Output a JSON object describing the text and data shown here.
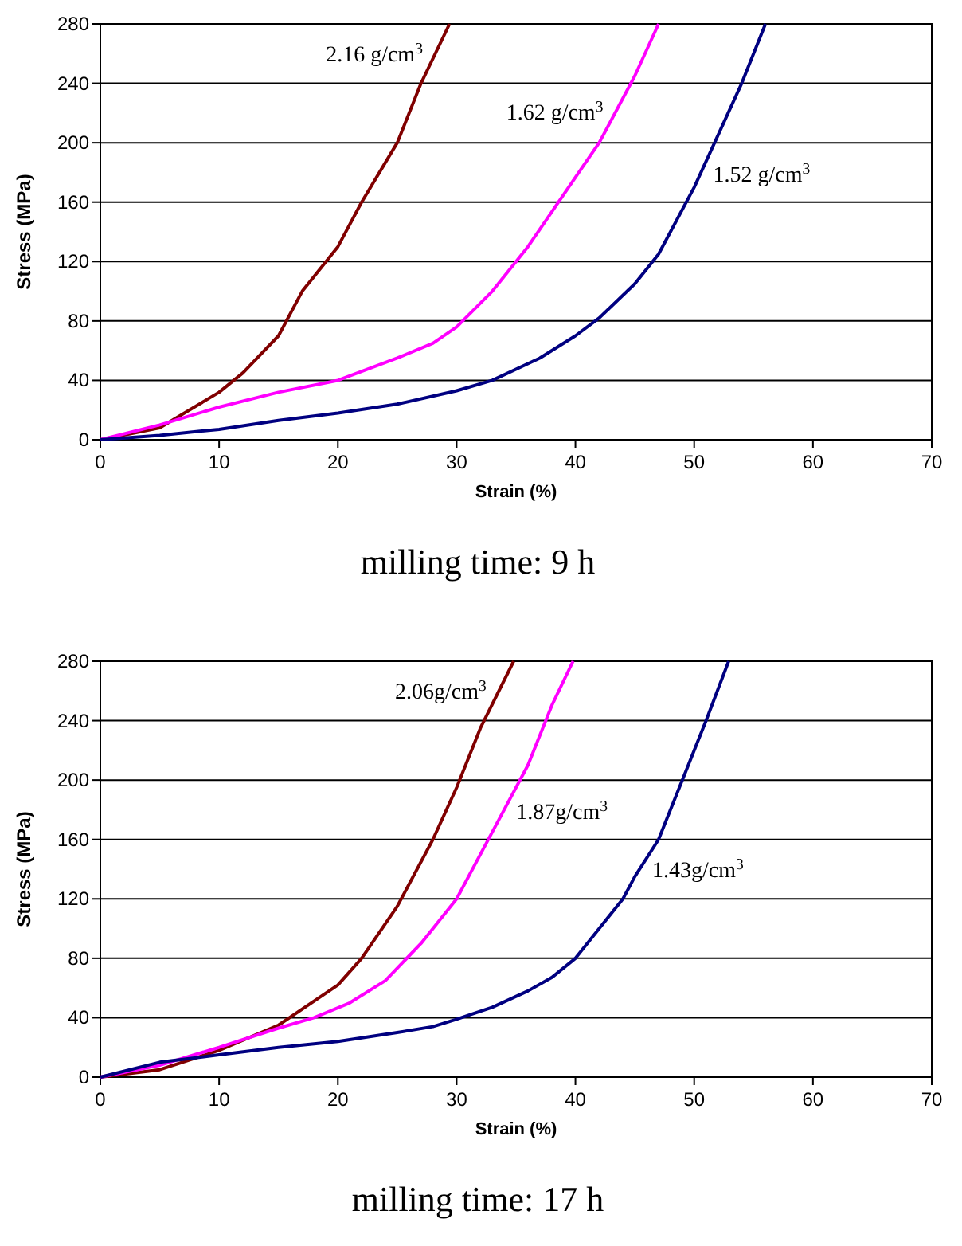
{
  "chart_data": [
    {
      "type": "line",
      "title": "milling time: 9 h",
      "xlabel": "Strain (%)",
      "ylabel": "Stress (MPa)",
      "xlim": [
        0,
        70
      ],
      "xticks": [
        0,
        10,
        20,
        30,
        40,
        50,
        60,
        70
      ],
      "ylim": [
        0,
        280
      ],
      "yticks": [
        0,
        40,
        80,
        120,
        160,
        200,
        240,
        280
      ],
      "grid": "y",
      "marker": "none",
      "line_style": "solid",
      "series": [
        {
          "name": "2.16 g/cm$^{3}$",
          "color": "#800000",
          "x": [
            0,
            5,
            10,
            12,
            15,
            17,
            20,
            22,
            25,
            27,
            29.4
          ],
          "values": [
            0,
            8,
            32,
            45,
            70,
            100,
            130,
            160,
            200,
            240,
            280
          ]
        },
        {
          "name": "1.62 g/cm$^{3}$",
          "color": "#ff00ff",
          "x": [
            0,
            5,
            10,
            15,
            20,
            25,
            28,
            30,
            33,
            36,
            39,
            42,
            45,
            47
          ],
          "values": [
            0,
            10,
            22,
            32,
            40,
            55,
            65,
            76,
            100,
            130,
            165,
            200,
            245,
            280
          ]
        },
        {
          "name": "1.52 g/cm$^{3}$",
          "color": "#000080",
          "x": [
            0,
            5,
            10,
            15,
            20,
            25,
            30,
            33,
            37,
            40,
            42,
            45,
            47,
            50,
            52,
            54,
            56
          ],
          "values": [
            0,
            3,
            7,
            13,
            18,
            24,
            33,
            40,
            55,
            70,
            82,
            105,
            125,
            170,
            205,
            240,
            280
          ]
        }
      ]
    },
    {
      "type": "line",
      "title": "milling time: 17 h",
      "xlabel": "Strain (%)",
      "ylabel": "Stress (MPa)",
      "xlim": [
        0,
        70
      ],
      "xticks": [
        0,
        10,
        20,
        30,
        40,
        50,
        60,
        70
      ],
      "ylim": [
        0,
        280
      ],
      "yticks": [
        0,
        40,
        80,
        120,
        160,
        200,
        240,
        280
      ],
      "grid": "y",
      "marker": "none",
      "line_style": "solid",
      "series": [
        {
          "name": "2.06g/cm$^{3}$",
          "color": "#800000",
          "x": [
            0,
            5,
            10,
            15,
            20,
            22,
            25,
            28,
            30,
            32,
            34.8
          ],
          "values": [
            0,
            5,
            18,
            35,
            62,
            80,
            115,
            160,
            195,
            235,
            280
          ]
        },
        {
          "name": "1.87g/cm$^{3}$",
          "color": "#ff00ff",
          "x": [
            0,
            5,
            10,
            15,
            18,
            21,
            24,
            27,
            30,
            33,
            36,
            38,
            39.8
          ],
          "values": [
            0,
            8,
            20,
            33,
            40,
            50,
            65,
            90,
            120,
            165,
            210,
            250,
            280
          ]
        },
        {
          "name": "1.43g/cm$^{3}$",
          "color": "#000080",
          "x": [
            0,
            5,
            10,
            15,
            20,
            25,
            28,
            30,
            33,
            36,
            38,
            40,
            42,
            44,
            45,
            47,
            49,
            51,
            52.9
          ],
          "values": [
            0,
            10,
            15,
            20,
            24,
            30,
            34,
            39,
            47,
            58,
            67,
            80,
            100,
            120,
            135,
            160,
            200,
            240,
            280
          ]
        }
      ]
    }
  ]
}
